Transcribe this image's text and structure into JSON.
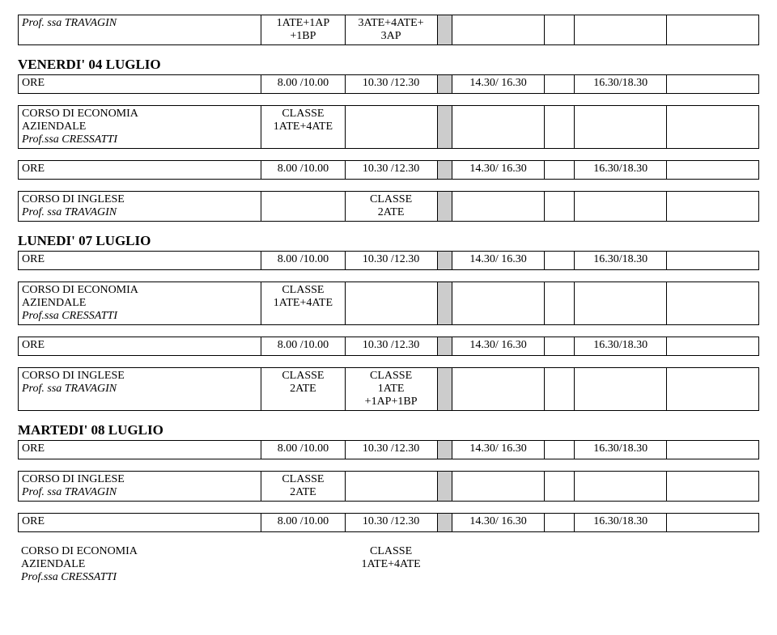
{
  "top_table": {
    "label": "Prof. ssa TRAVAGIN",
    "c1": "1ATE+1AP\n+1BP",
    "c2": "3ATE+4ATE+\n3AP"
  },
  "sections": [
    {
      "title": "VENERDI' 04 LUGLIO",
      "blocks": [
        {
          "ore": {
            "label": "ORE",
            "c1": "8.00 /10.00",
            "c2": "10.30 /12.30",
            "c3": "14.30/ 16.30",
            "c4": "16.30/18.30"
          },
          "detail": {
            "line1": "CORSO DI  ECONOMIA",
            "line2": "AZIENDALE",
            "line3": "Prof.ssa CRESSATTI",
            "c1_line1": "CLASSE",
            "c1_line2": "1ATE+4ATE",
            "c2_line1": "",
            "c2_line2": ""
          }
        },
        {
          "ore": {
            "label": "ORE",
            "c1": "8.00 /10.00",
            "c2": "10.30 /12.30",
            "c3": "14.30/ 16.30",
            "c4": "16.30/18.30"
          },
          "detail": {
            "line1": "CORSO DI  INGLESE",
            "line2": "",
            "line3": "Prof. ssa TRAVAGIN",
            "c1_line1": "",
            "c1_line2": "",
            "c2_line1": "CLASSE",
            "c2_line2": "2ATE"
          }
        }
      ]
    },
    {
      "title": "LUNEDI' 07 LUGLIO",
      "blocks": [
        {
          "ore": {
            "label": "ORE",
            "c1": "8.00 /10.00",
            "c2": "10.30 /12.30",
            "c3": "14.30/ 16.30",
            "c4": "16.30/18.30"
          },
          "detail": {
            "line1": "CORSO DI  ECONOMIA",
            "line2": "AZIENDALE",
            "line3": "Prof.ssa CRESSATTI",
            "c1_line1": "CLASSE",
            "c1_line2": "1ATE+4ATE",
            "c2_line1": "",
            "c2_line2": ""
          }
        },
        {
          "ore": {
            "label": "ORE",
            "c1": "8.00 /10.00",
            "c2": "10.30 /12.30",
            "c3": "14.30/ 16.30",
            "c4": "16.30/18.30"
          },
          "detail": {
            "line1": "CORSO DI  INGLESE",
            "line2": "",
            "line3": "Prof. ssa TRAVAGIN",
            "c1_line1": "CLASSE",
            "c1_line2": "2ATE",
            "c2_line1": "CLASSE",
            "c2_line2": "1ATE",
            "c2_line3": "+1AP+1BP"
          }
        }
      ]
    },
    {
      "title": "MARTEDI' 08 LUGLIO",
      "blocks": [
        {
          "ore": {
            "label": "ORE",
            "c1": "8.00 /10.00",
            "c2": "10.30 /12.30",
            "c3": "14.30/ 16.30",
            "c4": "16.30/18.30"
          },
          "detail": {
            "line1": "CORSO DI  INGLESE",
            "line2": "",
            "line3": "Prof. ssa TRAVAGIN",
            "c1_line1": "CLASSE",
            "c1_line2": "2ATE",
            "c2_line1": "",
            "c2_line2": ""
          }
        }
      ]
    }
  ],
  "bottom": {
    "ore": {
      "label": "ORE",
      "c1": "8.00 /10.00",
      "c2": "10.30 /12.30",
      "c3": "14.30/ 16.30",
      "c4": "16.30/18.30"
    },
    "detail": {
      "line1": "CORSO DI  ECONOMIA",
      "line2": "AZIENDALE",
      "line3": "Prof.ssa CRESSATTI",
      "c2_line1": "CLASSE",
      "c2_line2": "1ATE+4ATE"
    }
  }
}
